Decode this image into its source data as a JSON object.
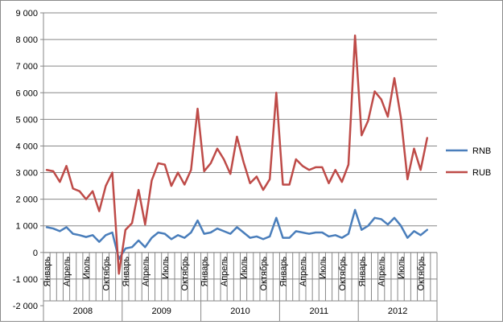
{
  "chart_data": {
    "type": "line",
    "title": "",
    "xlabel": "",
    "ylabel": "",
    "ylim": [
      -2000,
      9000
    ],
    "ytick_step": 1000,
    "yticks": [
      "-2 000",
      "-1 000",
      "0",
      "1 000",
      "2 000",
      "3 000",
      "4 000",
      "5 000",
      "6 000",
      "7 000",
      "8 000",
      "9 000"
    ],
    "grid": "horizontal",
    "legend_position": "right",
    "years": [
      "2008",
      "2009",
      "2010",
      "2011",
      "2012"
    ],
    "month_tick_labels": [
      "Январь",
      "Апрель",
      "Июль",
      "Октябрь"
    ],
    "months_per_year": 12,
    "series": [
      {
        "name": "RNB",
        "color": "#4a7ebb",
        "values": [
          950,
          900,
          800,
          950,
          700,
          650,
          580,
          650,
          400,
          650,
          750,
          -250,
          150,
          200,
          450,
          200,
          550,
          750,
          700,
          500,
          650,
          550,
          750,
          1200,
          700,
          750,
          900,
          800,
          700,
          950,
          750,
          550,
          600,
          500,
          600,
          1300,
          550,
          550,
          800,
          750,
          700,
          750,
          750,
          600,
          650,
          550,
          700,
          1600,
          850,
          1000,
          1300,
          1250,
          1050,
          1300,
          1000,
          550,
          800,
          650,
          850
        ]
      },
      {
        "name": "RUB",
        "color": "#be4b48",
        "values": [
          3100,
          3050,
          2650,
          3250,
          2400,
          2300,
          2000,
          2300,
          1550,
          2500,
          3000,
          -800,
          850,
          1100,
          2350,
          1050,
          2700,
          3350,
          3300,
          2500,
          3000,
          2550,
          3100,
          5400,
          3050,
          3350,
          3900,
          3500,
          2950,
          4350,
          3400,
          2600,
          2850,
          2350,
          2750,
          6000,
          2550,
          2550,
          3500,
          3250,
          3100,
          3200,
          3200,
          2600,
          3100,
          2650,
          3300,
          8150,
          4400,
          4950,
          6050,
          5750,
          5100,
          6550,
          5050,
          2750,
          3900,
          3100,
          4300
        ]
      }
    ]
  }
}
